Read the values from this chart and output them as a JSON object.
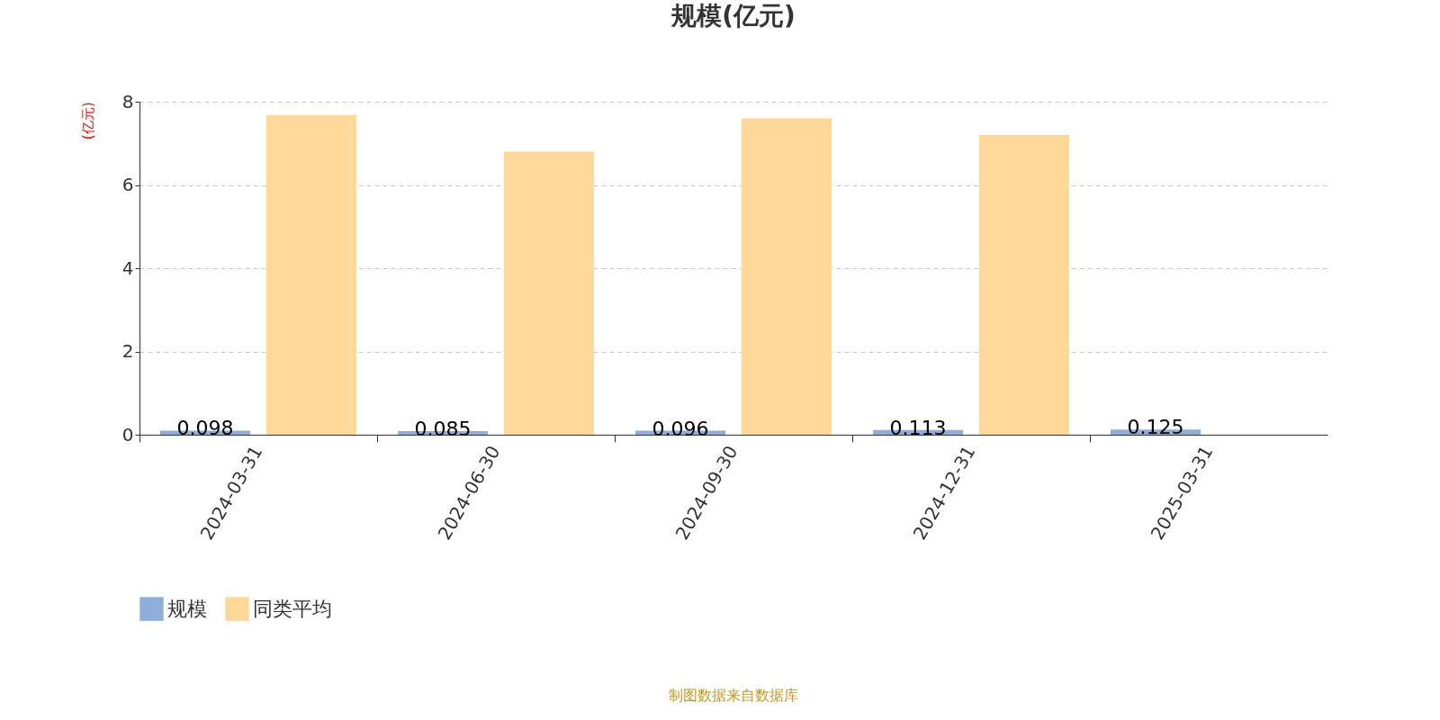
{
  "chart_data": {
    "type": "bar",
    "title": "规模(亿元)",
    "ylabel": "(亿元)",
    "categories": [
      "2024-03-31",
      "2024-06-30",
      "2024-09-30",
      "2024-12-31",
      "2025-03-31"
    ],
    "series": [
      {
        "name": "规模",
        "color": "#8eaedb",
        "values": [
          0.098,
          0.085,
          0.096,
          0.113,
          0.125
        ],
        "value_labels": [
          "0.098",
          "0.085",
          "0.096",
          "0.113",
          "0.125"
        ]
      },
      {
        "name": "同类平均",
        "color": "#fdd899",
        "values": [
          7.68,
          6.8,
          7.6,
          7.2,
          null
        ]
      }
    ],
    "ylim": [
      0,
      8
    ],
    "yticks": [
      0,
      2,
      4,
      6,
      8
    ],
    "grid": "y",
    "legend": "bottom",
    "annotations": [
      "制图数据来自数据库"
    ]
  }
}
